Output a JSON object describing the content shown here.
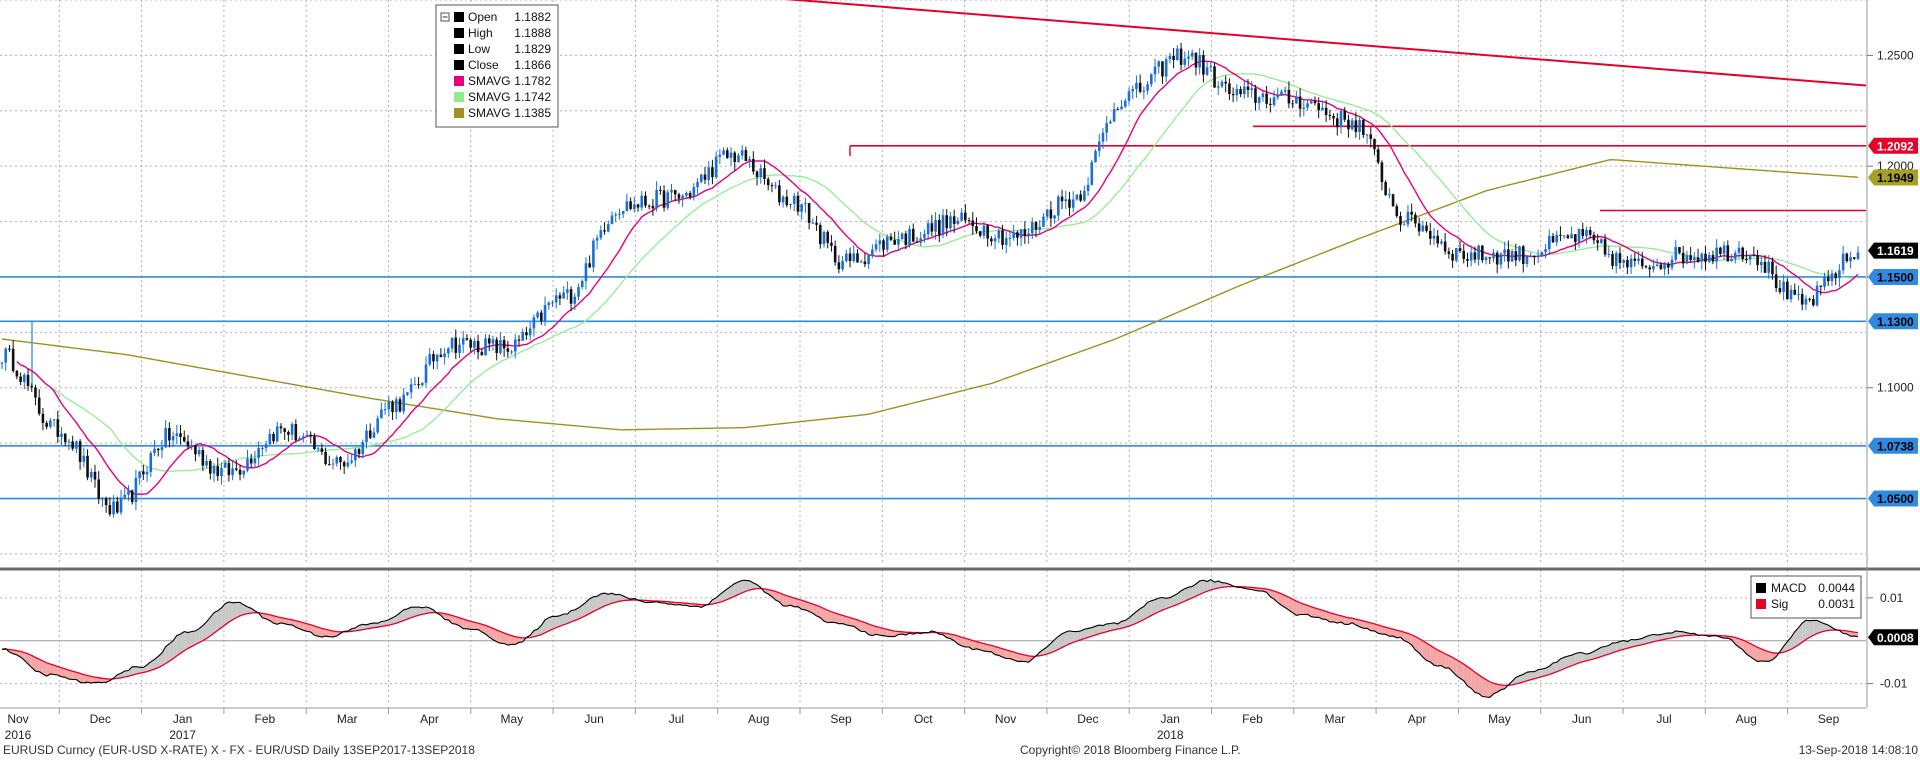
{
  "chart_data": [
    {
      "type": "candlestick",
      "ylim": [
        1.02,
        1.275
      ],
      "y_ticks": [
        1.1,
        1.15,
        1.2,
        1.25
      ],
      "x_months": [
        {
          "label": "Nov",
          "year": "2016"
        },
        {
          "label": "Dec",
          "year": ""
        },
        {
          "label": "Jan",
          "year": "2017"
        },
        {
          "label": "Feb",
          "year": ""
        },
        {
          "label": "Mar",
          "year": ""
        },
        {
          "label": "Apr",
          "year": ""
        },
        {
          "label": "May",
          "year": ""
        },
        {
          "label": "Jun",
          "year": ""
        },
        {
          "label": "Jul",
          "year": ""
        },
        {
          "label": "Aug",
          "year": ""
        },
        {
          "label": "Sep",
          "year": ""
        },
        {
          "label": "Oct",
          "year": ""
        },
        {
          "label": "Nov",
          "year": ""
        },
        {
          "label": "Dec",
          "year": ""
        },
        {
          "label": "Jan",
          "year": "2018"
        },
        {
          "label": "Feb",
          "year": ""
        },
        {
          "label": "Mar",
          "year": ""
        },
        {
          "label": "Apr",
          "year": ""
        },
        {
          "label": "May",
          "year": ""
        },
        {
          "label": "Jun",
          "year": ""
        },
        {
          "label": "Jul",
          "year": ""
        },
        {
          "label": "Aug",
          "year": ""
        },
        {
          "label": "Sep",
          "year": ""
        }
      ],
      "legend": [
        {
          "name": "Open",
          "value": "1.1882",
          "color": "#000000"
        },
        {
          "name": "High",
          "value": "1.1888",
          "color": "#000000"
        },
        {
          "name": "Low",
          "value": "1.1829",
          "color": "#000000"
        },
        {
          "name": "Close",
          "value": "1.1866",
          "color": "#000000"
        },
        {
          "name": "SMAVG",
          "value": "1.1782",
          "color": "#e6007e"
        },
        {
          "name": "SMAVG",
          "value": "1.1742",
          "color": "#90ee90"
        },
        {
          "name": "SMAVG",
          "value": "1.1385",
          "color": "#a09020"
        }
      ],
      "level_tags": [
        {
          "label": "1.2092",
          "value": 1.2092,
          "bg": "#e8002a",
          "fg": "#ffffff"
        },
        {
          "label": "1.1949",
          "value": 1.1949,
          "bg": "#a8a020",
          "fg": "#000000"
        },
        {
          "label": "1.1619",
          "value": 1.1619,
          "bg": "#000000",
          "fg": "#ffffff"
        },
        {
          "label": "1.1500",
          "value": 1.15,
          "bg": "#2f8be0",
          "fg": "#000000"
        },
        {
          "label": "1.1300",
          "value": 1.13,
          "bg": "#2f8be0",
          "fg": "#000000"
        },
        {
          "label": "1.0738",
          "value": 1.0738,
          "bg": "#2f8be0",
          "fg": "#000000"
        },
        {
          "label": "1.0500",
          "value": 1.05,
          "bg": "#2f8be0",
          "fg": "#000000"
        }
      ],
      "support_lines": [
        1.05,
        1.0738,
        1.13,
        1.15
      ],
      "resistance_lines": [
        1.2092,
        1.218,
        1.18
      ],
      "trendline": {
        "from": 1.2758,
        "to": 1.2364
      },
      "colors": {
        "up": "#1a6fd6",
        "down": "#111111",
        "sma_short": "#e6007e",
        "sma_mid": "#90ee90",
        "sma_long": "#a09020",
        "support": "#2f8be0",
        "resistance": "#e8002a"
      },
      "monthly_path": [
        1.115,
        1.081,
        1.045,
        1.078,
        1.062,
        1.081,
        1.066,
        1.093,
        1.12,
        1.118,
        1.141,
        1.182,
        1.186,
        1.205,
        1.185,
        1.157,
        1.168,
        1.175,
        1.168,
        1.185,
        1.232,
        1.25,
        1.232,
        1.23,
        1.22,
        1.175,
        1.16,
        1.16,
        1.168,
        1.155,
        1.16,
        1.162,
        1.138,
        1.16
      ]
    },
    {
      "type": "line",
      "ylim": [
        -0.015,
        0.0165
      ],
      "y_ticks": [
        0.01,
        -0.01
      ],
      "y_tick_labels": [
        "0.01",
        "-0.01"
      ],
      "legend": [
        {
          "name": "MACD",
          "value": "0.0044",
          "color": "#000000"
        },
        {
          "name": "Sig",
          "value": "0.0031",
          "color": "#e8002a"
        }
      ],
      "value_tag": {
        "label": "0.0008",
        "value": 0.0008
      },
      "macd_path": [
        -0.002,
        -0.008,
        -0.01,
        -0.006,
        0.002,
        0.009,
        0.004,
        0.001,
        0.004,
        0.008,
        0.003,
        -0.001,
        0.006,
        0.011,
        0.009,
        0.008,
        0.014,
        0.008,
        0.004,
        0.001,
        0.002,
        -0.002,
        -0.005,
        0.002,
        0.004,
        0.01,
        0.014,
        0.012,
        0.006,
        0.004,
        0.001,
        -0.006,
        -0.013,
        -0.007,
        -0.003,
        0.0,
        0.002,
        0.001,
        -0.005,
        0.005,
        0.0008
      ]
    }
  ],
  "footer": {
    "left": "EURUSD Curncy (EUR-USD X-RATE) X - FX - EUR/USD  Daily 13SEP2017-13SEP2018",
    "center": "Copyright© 2018 Bloomberg Finance L.P.",
    "right": "13-Sep-2018 14:08:10"
  }
}
